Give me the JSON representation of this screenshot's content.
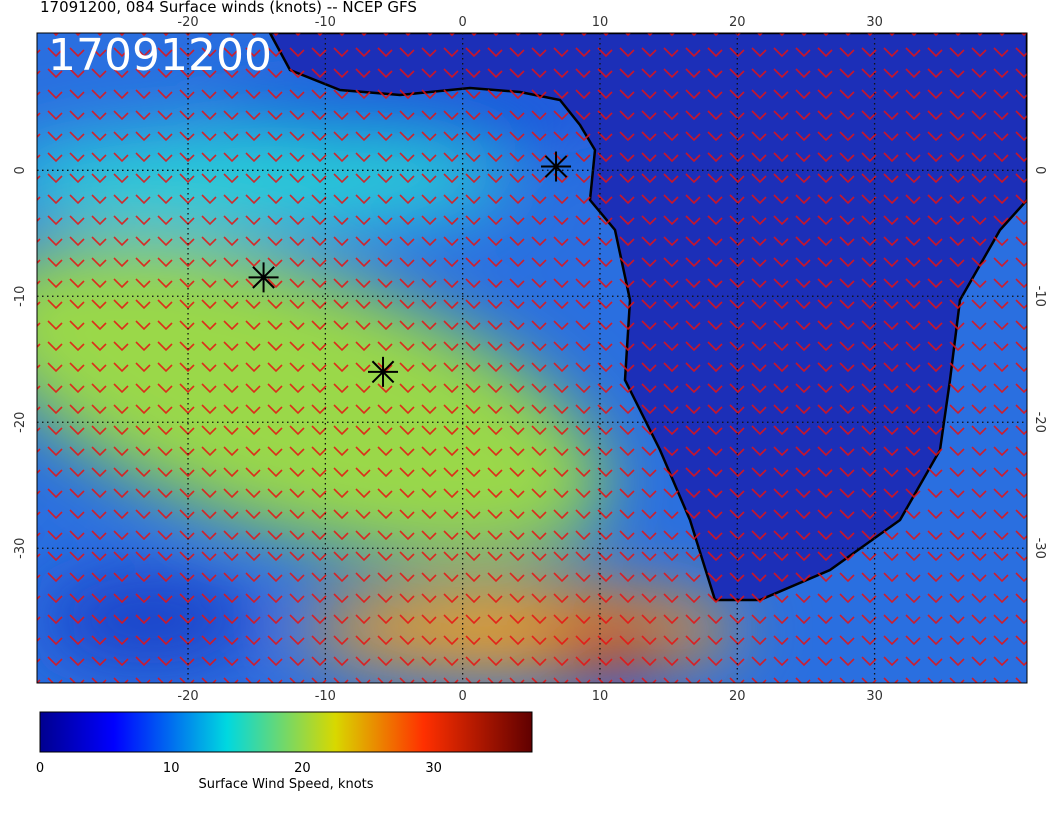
{
  "title": "17091200, 084 Surface winds (knots) -- NCEP GFS",
  "stamp": "17091200",
  "map": {
    "lonlim": [
      -31,
      41.1
    ],
    "latlim": [
      10.9,
      -40.7
    ],
    "lon_ticks": [
      -20,
      -10,
      0,
      10,
      20,
      30
    ],
    "lat_ticks": [
      0,
      -10,
      -20,
      -30
    ],
    "markers": [
      {
        "lon": -14.5,
        "lat": -8.5
      },
      {
        "lon": -5.8,
        "lat": -16
      },
      {
        "lon": 6.8,
        "lat": 0.3
      }
    ]
  },
  "colorbar": {
    "label": "Surface Wind Speed, knots",
    "lim": [
      0,
      37.5
    ],
    "ticks": [
      0,
      10,
      20,
      30
    ]
  }
}
